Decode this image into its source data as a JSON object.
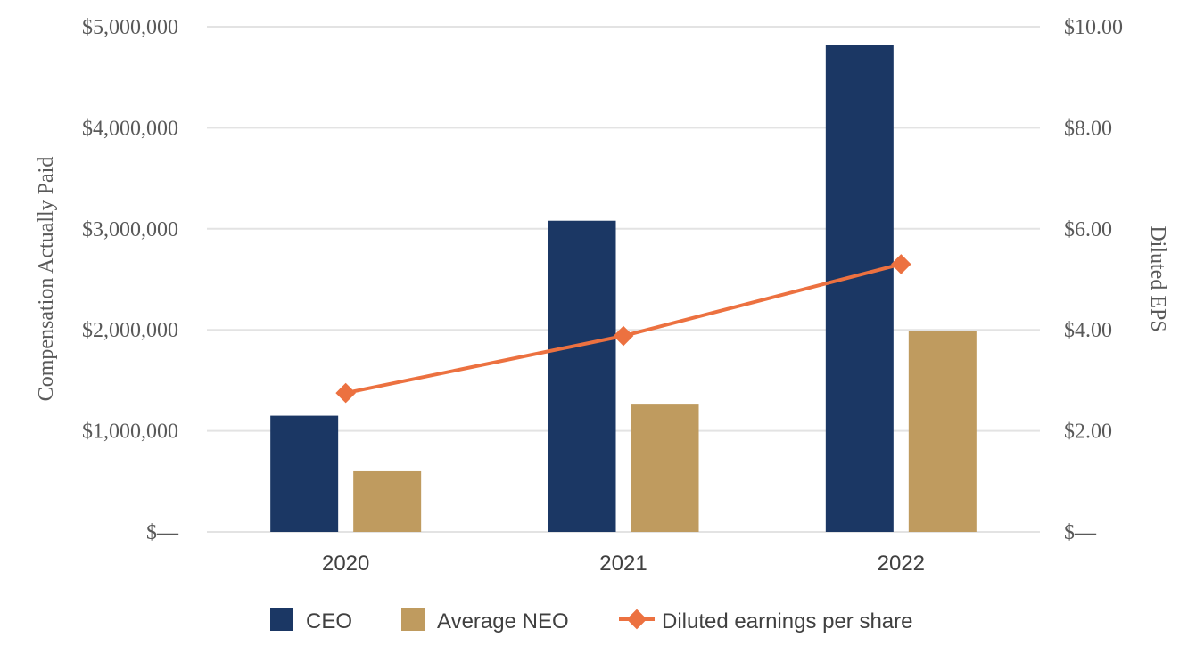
{
  "chart_data": {
    "type": "bar+line",
    "categories": [
      "2020",
      "2021",
      "2022"
    ],
    "series": [
      {
        "name": "CEO",
        "kind": "bar",
        "axis": "left",
        "color": "#1b3764",
        "values": [
          1150000,
          3080000,
          4820000
        ]
      },
      {
        "name": "Average NEO",
        "kind": "bar",
        "axis": "left",
        "color": "#bf9b5f",
        "values": [
          600000,
          1260000,
          1990000
        ]
      },
      {
        "name": "Diluted earnings per share",
        "kind": "line",
        "axis": "right",
        "color": "#ec7140",
        "values": [
          2.75,
          3.88,
          5.3
        ]
      }
    ],
    "left_axis": {
      "title": "Compensation Actually Paid",
      "min": 0,
      "max": 5000000,
      "ticks": [
        0,
        1000000,
        2000000,
        3000000,
        4000000,
        5000000
      ],
      "tick_labels": [
        "$—",
        "$1,000,000",
        "$2,000,000",
        "$3,000,000",
        "$4,000,000",
        "$5,000,000"
      ]
    },
    "right_axis": {
      "title": "Diluted EPS",
      "min": 0,
      "max": 10,
      "ticks": [
        0,
        2,
        4,
        6,
        8,
        10
      ],
      "tick_labels": [
        "$—",
        "$2.00",
        "$4.00",
        "$6.00",
        "$8.00",
        "$10.00"
      ]
    },
    "gridlines": true,
    "legend_position": "bottom"
  }
}
